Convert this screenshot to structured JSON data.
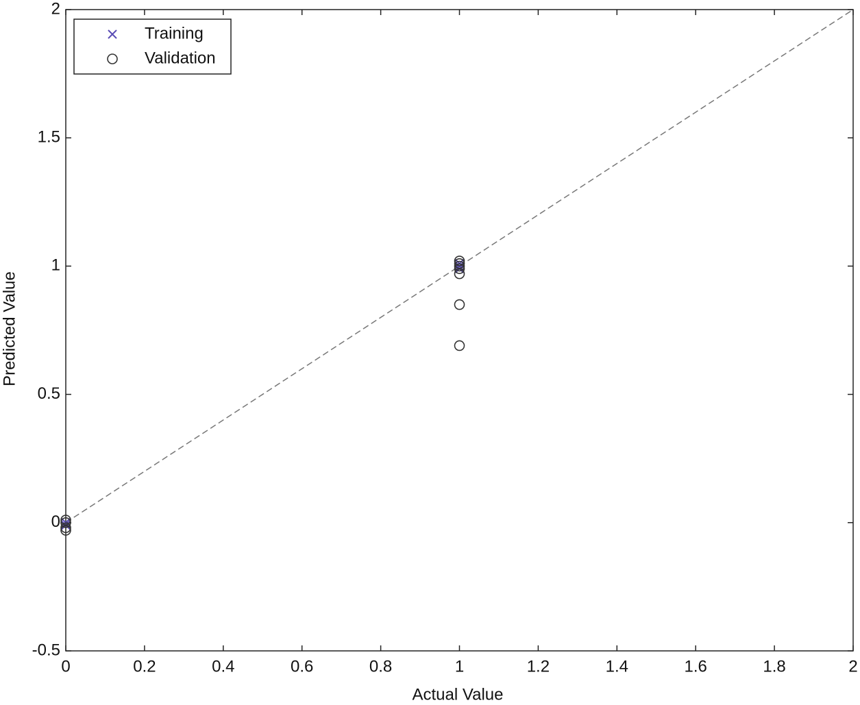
{
  "chart_data": {
    "type": "scatter",
    "x_label": "Actual Value",
    "y_label": "Predicted Value",
    "xlim": [
      0,
      2
    ],
    "ylim": [
      -0.5,
      2
    ],
    "xticks": [
      0,
      0.2,
      0.4,
      0.6,
      0.8,
      1,
      1.2,
      1.4,
      1.6,
      1.8,
      2
    ],
    "yticks": [
      -0.5,
      0,
      0.5,
      1,
      1.5,
      2
    ],
    "grid": false,
    "legend": "upper-left",
    "diagonal": true,
    "series": [
      {
        "name": "Training",
        "marker": "x",
        "color": "#5a4db5",
        "x": [
          0,
          0,
          1,
          1,
          1
        ],
        "y": [
          0,
          -0.01,
          1,
          1.01,
          0.99
        ]
      },
      {
        "name": "Validation",
        "marker": "o",
        "color": "#333333",
        "x": [
          0,
          0,
          0,
          0,
          1,
          1,
          1,
          1,
          1,
          1,
          1
        ],
        "y": [
          0.01,
          0,
          -0.02,
          -0.03,
          1.02,
          1.01,
          1,
          0.99,
          0.97,
          0.85,
          0.69
        ]
      }
    ]
  }
}
